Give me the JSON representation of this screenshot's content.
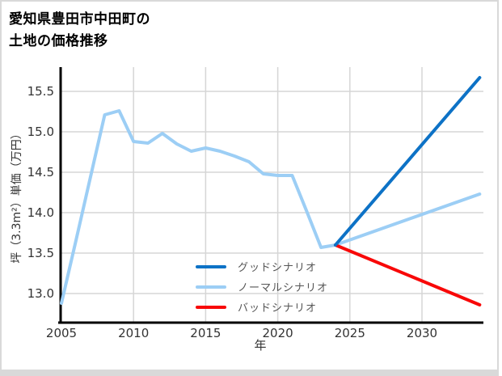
{
  "title": {
    "line1": "愛知県豊田市中田町の",
    "line2": "土地の価格推移"
  },
  "axes": {
    "x_label": "年",
    "y_label": "坪（3.3m²）単価（万円）"
  },
  "legend": {
    "items": [
      {
        "label": "グッドシナリオ",
        "color": "#0d72c6"
      },
      {
        "label": "ノーマルシナリオ",
        "color": "#9ccef5"
      },
      {
        "label": "バッドシナリオ",
        "color": "#f80808"
      }
    ]
  },
  "colors": {
    "grid": "#d6d6d6",
    "axis_line": "#000000",
    "tick_text": "#333333",
    "border": "#d9d9d9"
  },
  "chart_data": {
    "type": "line",
    "title": "愛知県豊田市中田町の土地の価格推移",
    "xlabel": "年",
    "ylabel": "坪（3.3m²）単価（万円）",
    "xlim": [
      2005,
      2034.3
    ],
    "ylim": [
      12.64,
      15.8
    ],
    "x_ticks": [
      2005,
      2010,
      2015,
      2020,
      2025,
      2030
    ],
    "y_ticks": [
      13.0,
      13.5,
      14.0,
      14.5,
      15.0,
      15.5
    ],
    "grid": true,
    "legend_position": "inside-bottom-center",
    "series": [
      {
        "name": "historical-price",
        "color": "#9ccef5",
        "in_legend": false,
        "x": [
          2005,
          2006,
          2007,
          2008,
          2009,
          2010,
          2011,
          2012,
          2013,
          2014,
          2015,
          2016,
          2017,
          2018,
          2019,
          2020,
          2021,
          2022,
          2023,
          2024
        ],
        "y": [
          12.88,
          13.65,
          14.43,
          15.21,
          15.26,
          14.88,
          14.86,
          14.98,
          14.85,
          14.76,
          14.8,
          14.76,
          14.7,
          14.63,
          14.48,
          14.46,
          14.46,
          14.02,
          13.57,
          13.6
        ]
      },
      {
        "name": "グッドシナリオ",
        "color": "#0d72c6",
        "in_legend": true,
        "x": [
          2024,
          2034
        ],
        "y": [
          13.6,
          15.67
        ]
      },
      {
        "name": "ノーマルシナリオ",
        "color": "#9ccef5",
        "in_legend": true,
        "x": [
          2024,
          2034
        ],
        "y": [
          13.6,
          14.23
        ]
      },
      {
        "name": "バッドシナリオ",
        "color": "#f80808",
        "in_legend": true,
        "x": [
          2024,
          2034
        ],
        "y": [
          13.6,
          12.86
        ]
      }
    ]
  }
}
